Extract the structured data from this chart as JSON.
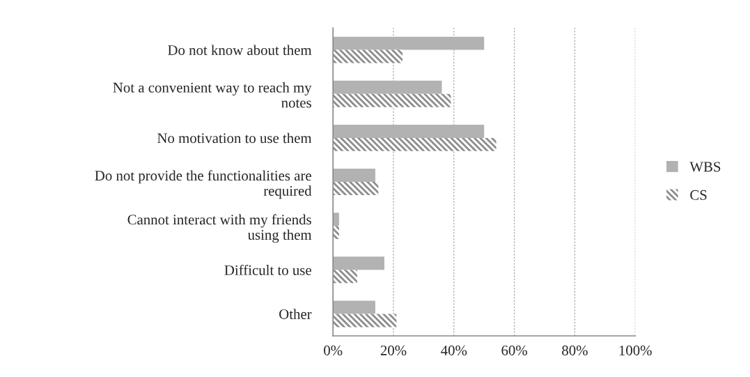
{
  "chart_data": {
    "type": "bar",
    "orientation": "horizontal",
    "categories": [
      "Do not know about them",
      "Not a convenient way to reach my\nnotes",
      "No motivation to use them",
      "Do not provide the functionalities are\nrequired",
      "Cannot interact with my friends\nusing them",
      "Difficult to use",
      "Other"
    ],
    "series": [
      {
        "name": "WBS",
        "color": "#b2b2b2",
        "values": [
          50,
          36,
          50,
          14,
          2,
          17,
          14
        ]
      },
      {
        "name": "CS",
        "color": "#8c8c8c",
        "values": [
          23,
          39,
          54,
          15,
          2,
          8,
          21
        ]
      }
    ],
    "xlim": [
      0,
      100
    ],
    "xticks": [
      {
        "value": 0,
        "label": "0%"
      },
      {
        "value": 20,
        "label": "20%"
      },
      {
        "value": 40,
        "label": "40%"
      },
      {
        "value": 60,
        "label": "60%"
      },
      {
        "value": 80,
        "label": "80%"
      },
      {
        "value": 100,
        "label": "100%"
      }
    ],
    "grid": "x",
    "legend": "right"
  }
}
